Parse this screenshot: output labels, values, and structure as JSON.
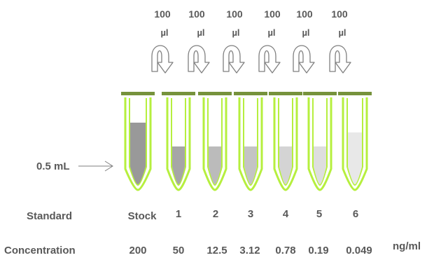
{
  "transfer": {
    "volume": "100",
    "unit": "µl"
  },
  "volume_marker": "0.5 mL",
  "tube_labels": {
    "row_label": "Standard",
    "items": [
      "Stock",
      "1",
      "2",
      "3",
      "4",
      "5",
      "6"
    ]
  },
  "concentrations": {
    "row_label": "Concentration",
    "values": [
      "200",
      "50",
      "12.5",
      "3.12",
      "0.78",
      "0.19",
      "0.049"
    ],
    "unit": "ng/ml"
  },
  "colors": {
    "tube_outline": "#b6ef3e",
    "cap": "#76923c",
    "text": "#595959",
    "arrow": "#7f7f7f",
    "liquids": [
      "#999999",
      "#a6a6a6",
      "#bbbbbb",
      "#c4c4c4",
      "#d4d4d4",
      "#dedede",
      "#e8e8e8"
    ]
  },
  "icons": {
    "transfer_arrow": "curved-down-arrow-icon",
    "pointer": "right-arrow-icon"
  }
}
